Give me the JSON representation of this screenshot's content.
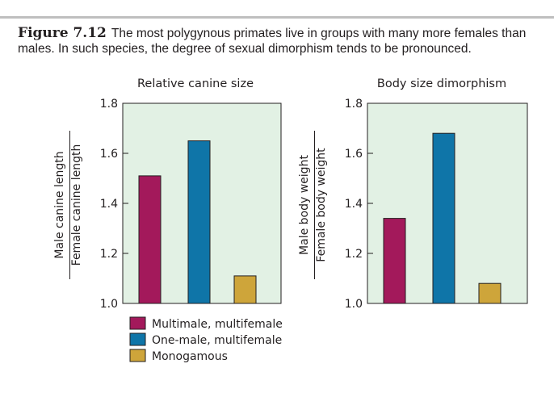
{
  "caption": {
    "figure_label": "Figure 7.12",
    "text": "The most polygynous primates live in groups with many more females than males. In such species, the degree of sexual dimorphism tends to be pronounced."
  },
  "colors": {
    "multimale_multifemale": "#a3195b",
    "one_male_multifemale": "#0f75a8",
    "monogamous": "#cea53a",
    "plot_background": "#e2f1e4"
  },
  "legend": [
    {
      "label": "Multimale, multifemale",
      "color": "#a3195b"
    },
    {
      "label": "One-male, multifemale",
      "color": "#0f75a8"
    },
    {
      "label": "Monogamous",
      "color": "#cea53a"
    }
  ],
  "chart_data": [
    {
      "type": "bar",
      "title": "Relative canine size",
      "ylabel_numerator": "Male canine length",
      "ylabel_denominator": "Female canine length",
      "categories": [
        "Multimale, multifemale",
        "One-male, multifemale",
        "Monogamous"
      ],
      "values": [
        1.51,
        1.65,
        1.11
      ],
      "ylim": [
        1.0,
        1.8
      ],
      "yticks": [
        1.0,
        1.2,
        1.4,
        1.6,
        1.8
      ],
      "ytick_labels": [
        "1.0",
        "1.2",
        "1.4",
        "1.6",
        "1.8"
      ],
      "grid": false
    },
    {
      "type": "bar",
      "title": "Body size dimorphism",
      "ylabel_numerator": "Male body weight",
      "ylabel_denominator": "Female body weight",
      "categories": [
        "Multimale, multifemale",
        "One-male, multifemale",
        "Monogamous"
      ],
      "values": [
        1.34,
        1.68,
        1.08
      ],
      "ylim": [
        1.0,
        1.8
      ],
      "yticks": [
        1.0,
        1.2,
        1.4,
        1.6,
        1.8
      ],
      "ytick_labels": [
        "1.0",
        "1.2",
        "1.4",
        "1.6",
        "1.8"
      ],
      "grid": false
    }
  ]
}
